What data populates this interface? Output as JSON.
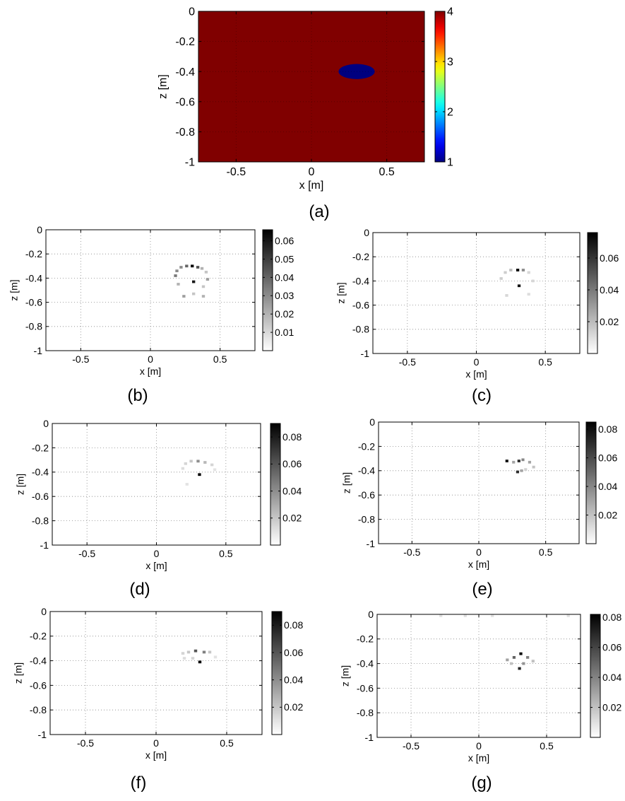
{
  "chart_data": [
    {
      "id": "a",
      "type": "heatmap",
      "caption": "(a)",
      "xlabel": "x [m]",
      "ylabel": "z [m]",
      "xlim": [
        -0.75,
        0.75
      ],
      "ylim": [
        -1,
        0
      ],
      "xticks": [
        -0.5,
        0,
        0.5
      ],
      "xtick_labels": [
        "-0.5",
        "0",
        "0.5"
      ],
      "yticks": [
        0,
        -0.2,
        -0.4,
        -0.6,
        -0.8,
        -1
      ],
      "ytick_labels": [
        "0",
        "-0.2",
        "-0.4",
        "-0.6",
        "-0.8",
        "-1"
      ],
      "colormap": "jet",
      "clim": [
        1,
        4
      ],
      "colorbar_ticks": [
        1,
        2,
        3,
        4
      ],
      "colorbar_tick_labels": [
        "1",
        "2",
        "3",
        "4"
      ],
      "background_value": 4,
      "anomaly": {
        "value": 1,
        "center_x": 0.3,
        "center_z": -0.4,
        "radius_x": 0.12,
        "radius_z": 0.05
      },
      "grid": true
    },
    {
      "id": "b",
      "type": "heatmap",
      "caption": "(b)",
      "xlabel": "x [m]",
      "ylabel": "z [m]",
      "xlim": [
        -0.75,
        0.75
      ],
      "ylim": [
        -1,
        0
      ],
      "xticks": [
        -0.5,
        0,
        0.5
      ],
      "xtick_labels": [
        "-0.5",
        "0",
        "0.5"
      ],
      "yticks": [
        0,
        -0.2,
        -0.4,
        -0.6,
        -0.8,
        -1
      ],
      "ytick_labels": [
        "0",
        "-0.2",
        "-0.4",
        "-0.6",
        "-0.8",
        "-1"
      ],
      "colormap": "gray-reversed",
      "clim": [
        0,
        0.066
      ],
      "colorbar_ticks": [
        0.01,
        0.02,
        0.03,
        0.04,
        0.05,
        0.06
      ],
      "colorbar_tick_labels": [
        "0.01",
        "0.02",
        "0.03",
        "0.04",
        "0.05",
        "0.06"
      ],
      "grid": true,
      "points": [
        {
          "x": 0.3,
          "z": -0.3,
          "v": 0.066
        },
        {
          "x": 0.31,
          "z": -0.43,
          "v": 0.06
        },
        {
          "x": 0.26,
          "z": -0.3,
          "v": 0.04
        },
        {
          "x": 0.22,
          "z": -0.31,
          "v": 0.03
        },
        {
          "x": 0.34,
          "z": -0.31,
          "v": 0.045
        },
        {
          "x": 0.37,
          "z": -0.32,
          "v": 0.02
        },
        {
          "x": 0.19,
          "z": -0.34,
          "v": 0.03
        },
        {
          "x": 0.4,
          "z": -0.35,
          "v": 0.015
        },
        {
          "x": 0.18,
          "z": -0.38,
          "v": 0.035
        },
        {
          "x": 0.41,
          "z": -0.41,
          "v": 0.025
        },
        {
          "x": 0.2,
          "z": -0.45,
          "v": 0.02
        },
        {
          "x": 0.38,
          "z": -0.47,
          "v": 0.015
        },
        {
          "x": 0.24,
          "z": -0.55,
          "v": 0.025
        },
        {
          "x": 0.31,
          "z": -0.53,
          "v": 0.015
        },
        {
          "x": 0.38,
          "z": -0.55,
          "v": 0.02
        }
      ]
    },
    {
      "id": "c",
      "type": "heatmap",
      "caption": "(c)",
      "xlabel": "x [m]",
      "ylabel": "z [m]",
      "xlim": [
        -0.75,
        0.75
      ],
      "ylim": [
        -1,
        0
      ],
      "xticks": [
        -0.5,
        0,
        0.5
      ],
      "xtick_labels": [
        "-0.5",
        "0",
        "0.5"
      ],
      "yticks": [
        0,
        -0.2,
        -0.4,
        -0.6,
        -0.8,
        -1
      ],
      "ytick_labels": [
        "0",
        "-0.2",
        "-0.4",
        "-0.6",
        "-0.8",
        "-1"
      ],
      "colormap": "gray-reversed",
      "clim": [
        0,
        0.076
      ],
      "colorbar_ticks": [
        0.02,
        0.04,
        0.06
      ],
      "colorbar_tick_labels": [
        "0.02",
        "0.04",
        "0.06"
      ],
      "grid": true,
      "points": [
        {
          "x": 0.3,
          "z": -0.31,
          "v": 0.076
        },
        {
          "x": 0.31,
          "z": -0.44,
          "v": 0.07
        },
        {
          "x": 0.25,
          "z": -0.31,
          "v": 0.02
        },
        {
          "x": 0.34,
          "z": -0.31,
          "v": 0.035
        },
        {
          "x": 0.21,
          "z": -0.33,
          "v": 0.015
        },
        {
          "x": 0.38,
          "z": -0.33,
          "v": 0.012
        },
        {
          "x": 0.18,
          "z": -0.38,
          "v": 0.015
        },
        {
          "x": 0.41,
          "z": -0.4,
          "v": 0.012
        },
        {
          "x": 0.22,
          "z": -0.52,
          "v": 0.012
        },
        {
          "x": 0.38,
          "z": -0.51,
          "v": 0.01
        }
      ]
    },
    {
      "id": "d",
      "type": "heatmap",
      "caption": "(d)",
      "xlabel": "x [m]",
      "ylabel": "z [m]",
      "xlim": [
        -0.75,
        0.75
      ],
      "ylim": [
        -1,
        0
      ],
      "xticks": [
        -0.5,
        0,
        0.5
      ],
      "xtick_labels": [
        "-0.5",
        "0",
        "0.5"
      ],
      "yticks": [
        0,
        -0.2,
        -0.4,
        -0.6,
        -0.8,
        -1
      ],
      "ytick_labels": [
        "0",
        "-0.2",
        "-0.4",
        "-0.6",
        "-0.8",
        "-1"
      ],
      "colormap": "gray-reversed",
      "clim": [
        0,
        0.09
      ],
      "colorbar_ticks": [
        0.02,
        0.04,
        0.06,
        0.08
      ],
      "colorbar_tick_labels": [
        "0.02",
        "0.04",
        "0.06",
        "0.08"
      ],
      "grid": true,
      "points": [
        {
          "x": 0.31,
          "z": -0.42,
          "v": 0.09
        },
        {
          "x": 0.3,
          "z": -0.31,
          "v": 0.04
        },
        {
          "x": 0.25,
          "z": -0.31,
          "v": 0.02
        },
        {
          "x": 0.35,
          "z": -0.32,
          "v": 0.025
        },
        {
          "x": 0.21,
          "z": -0.33,
          "v": 0.015
        },
        {
          "x": 0.4,
          "z": -0.34,
          "v": 0.015
        },
        {
          "x": 0.19,
          "z": -0.37,
          "v": 0.012
        },
        {
          "x": 0.42,
          "z": -0.38,
          "v": 0.01
        },
        {
          "x": 0.22,
          "z": -0.5,
          "v": 0.01
        }
      ]
    },
    {
      "id": "e",
      "type": "heatmap",
      "caption": "(e)",
      "xlabel": "x [m]",
      "ylabel": "z [m]",
      "xlim": [
        -0.75,
        0.75
      ],
      "ylim": [
        -1,
        0
      ],
      "xticks": [
        -0.5,
        0,
        0.5
      ],
      "xtick_labels": [
        "-0.5",
        "0",
        "0.5"
      ],
      "yticks": [
        0,
        -0.2,
        -0.4,
        -0.6,
        -0.8,
        -1
      ],
      "ytick_labels": [
        "0",
        "-0.2",
        "-0.4",
        "-0.6",
        "-0.8",
        "-1"
      ],
      "colormap": "gray-reversed",
      "clim": [
        0,
        0.085
      ],
      "colorbar_ticks": [
        0.02,
        0.04,
        0.06,
        0.08
      ],
      "colorbar_tick_labels": [
        "0.02",
        "0.04",
        "0.06",
        "0.08"
      ],
      "grid": true,
      "points": [
        {
          "x": 0.21,
          "z": -0.32,
          "v": 0.08
        },
        {
          "x": 0.3,
          "z": -0.32,
          "v": 0.07
        },
        {
          "x": 0.33,
          "z": -0.31,
          "v": 0.04
        },
        {
          "x": 0.26,
          "z": -0.33,
          "v": 0.03
        },
        {
          "x": 0.38,
          "z": -0.33,
          "v": 0.03
        },
        {
          "x": 0.29,
          "z": -0.41,
          "v": 0.07
        },
        {
          "x": 0.32,
          "z": -0.4,
          "v": 0.03
        },
        {
          "x": 0.41,
          "z": -0.37,
          "v": 0.02
        },
        {
          "x": 0.35,
          "z": -0.39,
          "v": 0.015
        }
      ]
    },
    {
      "id": "f",
      "type": "heatmap",
      "caption": "(f)",
      "xlabel": "x [m]",
      "ylabel": "z [m]",
      "xlim": [
        -0.75,
        0.75
      ],
      "ylim": [
        -1,
        0
      ],
      "xticks": [
        -0.5,
        0,
        0.5
      ],
      "xtick_labels": [
        "-0.5",
        "0",
        "0.5"
      ],
      "yticks": [
        0,
        -0.2,
        -0.4,
        -0.6,
        -0.8,
        -1
      ],
      "ytick_labels": [
        "0",
        "-0.2",
        "-0.4",
        "-0.6",
        "-0.8",
        "-1"
      ],
      "colormap": "gray-reversed",
      "clim": [
        0,
        0.09
      ],
      "colorbar_ticks": [
        0.02,
        0.04,
        0.06,
        0.08
      ],
      "colorbar_tick_labels": [
        "0.02",
        "0.04",
        "0.06",
        "0.08"
      ],
      "grid": true,
      "points": [
        {
          "x": 0.31,
          "z": -0.41,
          "v": 0.09
        },
        {
          "x": 0.28,
          "z": -0.32,
          "v": 0.06
        },
        {
          "x": 0.23,
          "z": -0.33,
          "v": 0.02
        },
        {
          "x": 0.34,
          "z": -0.33,
          "v": 0.045
        },
        {
          "x": 0.19,
          "z": -0.34,
          "v": 0.015
        },
        {
          "x": 0.38,
          "z": -0.33,
          "v": 0.02
        },
        {
          "x": 0.2,
          "z": -0.38,
          "v": 0.012
        },
        {
          "x": 0.42,
          "z": -0.37,
          "v": 0.01
        },
        {
          "x": 0.26,
          "z": -0.38,
          "v": 0.015
        }
      ]
    },
    {
      "id": "g",
      "type": "heatmap",
      "caption": "(g)",
      "xlabel": "x [m]",
      "ylabel": "z [m]",
      "xlim": [
        -0.75,
        0.75
      ],
      "ylim": [
        -1,
        0
      ],
      "xticks": [
        -0.5,
        0,
        0.5
      ],
      "xtick_labels": [
        "-0.5",
        "0",
        "0.5"
      ],
      "yticks": [
        0,
        -0.2,
        -0.4,
        -0.6,
        -0.8,
        -1
      ],
      "ytick_labels": [
        "0",
        "-0.2",
        "-0.4",
        "-0.6",
        "-0.8",
        "-1"
      ],
      "colormap": "gray-reversed",
      "clim": [
        0,
        0.082
      ],
      "colorbar_ticks": [
        0.02,
        0.04,
        0.06,
        0.08
      ],
      "colorbar_tick_labels": [
        "0.02",
        "0.04",
        "0.06",
        "0.08"
      ],
      "grid": true,
      "points": [
        {
          "x": 0.31,
          "z": -0.32,
          "v": 0.08
        },
        {
          "x": 0.3,
          "z": -0.44,
          "v": 0.07
        },
        {
          "x": 0.26,
          "z": -0.35,
          "v": 0.05
        },
        {
          "x": 0.36,
          "z": -0.35,
          "v": 0.04
        },
        {
          "x": 0.21,
          "z": -0.37,
          "v": 0.03
        },
        {
          "x": 0.4,
          "z": -0.38,
          "v": 0.02
        },
        {
          "x": 0.33,
          "z": -0.4,
          "v": 0.035
        },
        {
          "x": 0.24,
          "z": -0.4,
          "v": 0.02
        },
        {
          "x": -0.28,
          "z": 0.0,
          "v": 0.01
        },
        {
          "x": -0.1,
          "z": 0.0,
          "v": 0.01
        },
        {
          "x": 0.1,
          "z": 0.0,
          "v": 0.01
        },
        {
          "x": 0.66,
          "z": 0.0,
          "v": 0.01
        }
      ]
    }
  ]
}
